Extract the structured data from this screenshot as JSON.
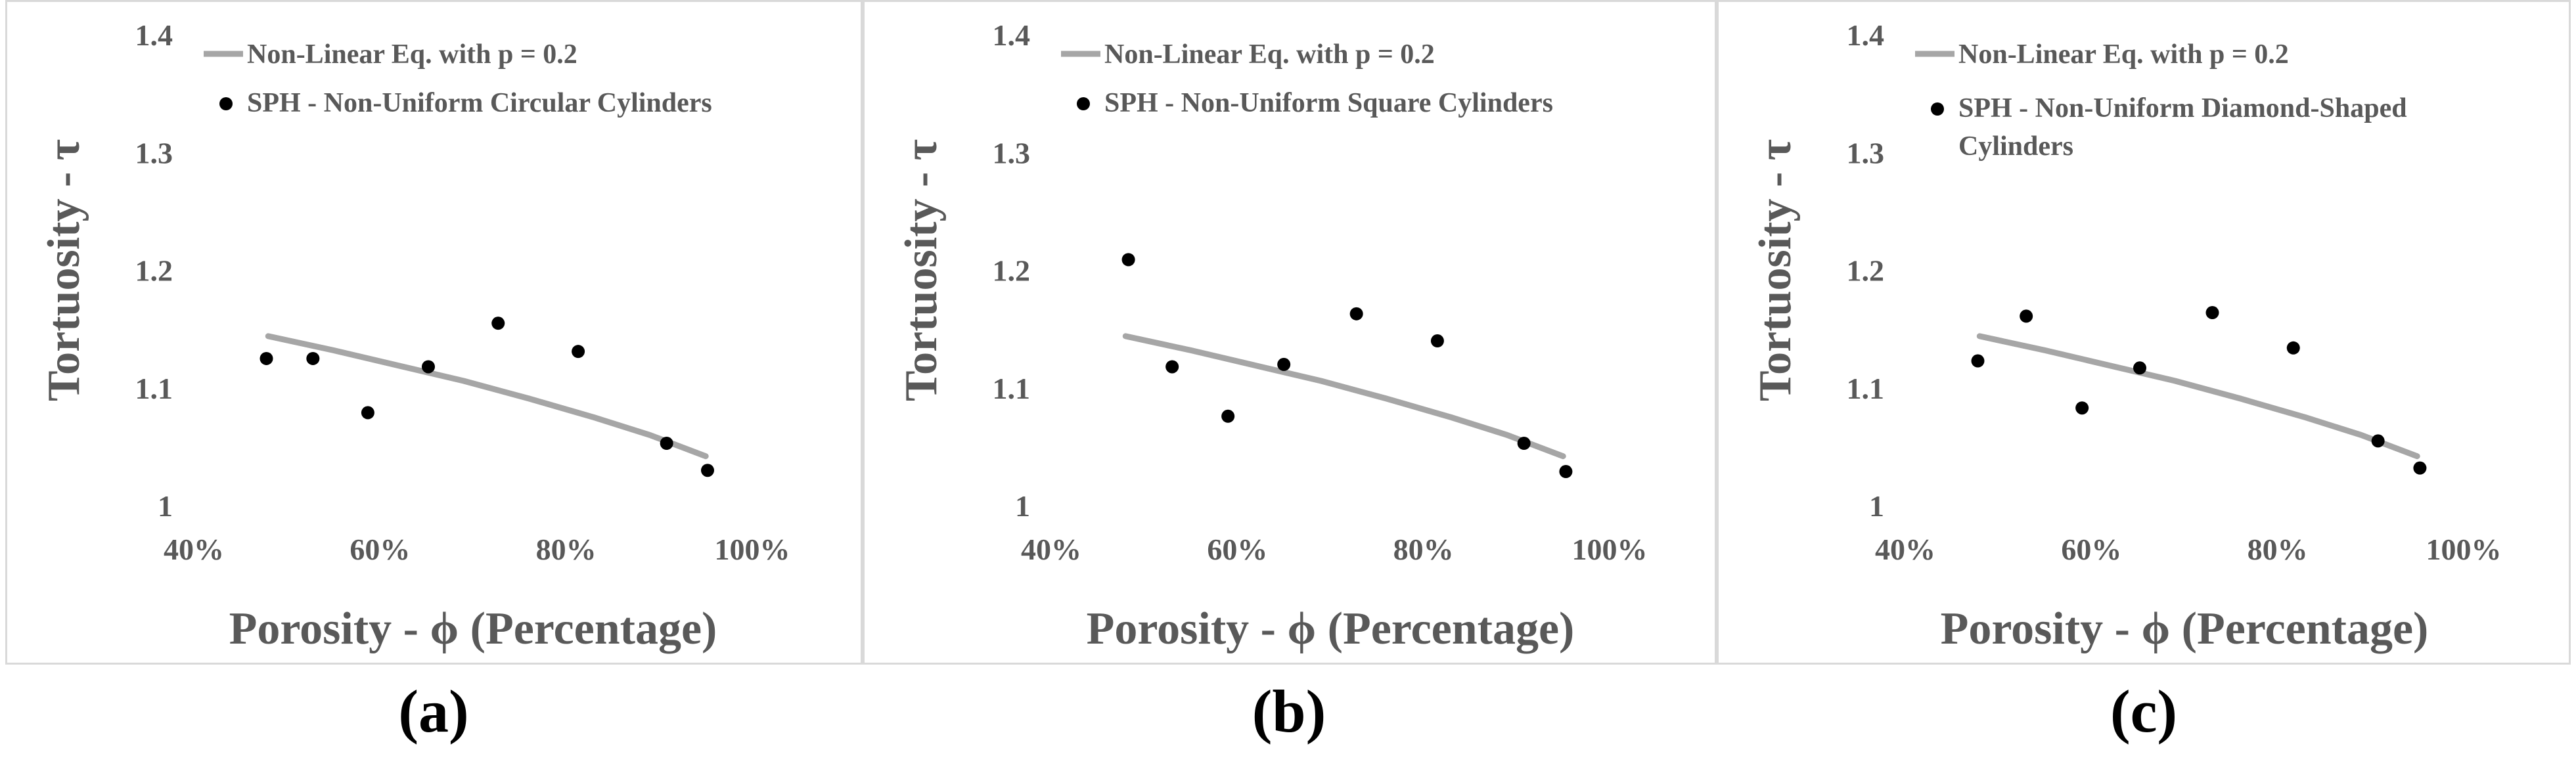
{
  "chart_data": [
    {
      "type": "scatter",
      "panel_label": "(a)",
      "xlabel": "Porosity - ϕ (Percentage)",
      "ylabel": "Tortuosity - τ",
      "xlim": [
        0.4,
        1.0
      ],
      "ylim": [
        1.0,
        1.4
      ],
      "x_ticks": [
        "40%",
        "60%",
        "80%",
        "100%"
      ],
      "y_ticks": [
        "1",
        "1.1",
        "1.2",
        "1.3",
        "1.4"
      ],
      "series": [
        {
          "name": "Non-Linear Eq. with p = 0.2",
          "kind": "line",
          "color": "#a6a6a6",
          "x": [
            0.48,
            0.55,
            0.62,
            0.69,
            0.76,
            0.83,
            0.89,
            0.95
          ],
          "y": [
            1.144,
            1.132,
            1.119,
            1.106,
            1.091,
            1.075,
            1.06,
            1.042
          ]
        },
        {
          "name": "SPH - Non-Uniform Circular Cylinders",
          "kind": "scatter",
          "color": "#000000",
          "x": [
            0.478,
            0.528,
            0.587,
            0.652,
            0.727,
            0.813,
            0.908,
            0.952
          ],
          "y": [
            1.125,
            1.125,
            1.079,
            1.118,
            1.155,
            1.131,
            1.053,
            1.03
          ]
        }
      ]
    },
    {
      "type": "scatter",
      "panel_label": "(b)",
      "xlabel": "Porosity - ϕ (Percentage)",
      "ylabel": "Tortuosity - τ",
      "xlim": [
        0.4,
        1.0
      ],
      "ylim": [
        1.0,
        1.4
      ],
      "x_ticks": [
        "40%",
        "60%",
        "80%",
        "100%"
      ],
      "y_ticks": [
        "1",
        "1.1",
        "1.2",
        "1.3",
        "1.4"
      ],
      "series": [
        {
          "name": "Non-Linear Eq. with p = 0.2",
          "kind": "line",
          "color": "#a6a6a6",
          "x": [
            0.48,
            0.55,
            0.62,
            0.69,
            0.76,
            0.83,
            0.89,
            0.95
          ],
          "y": [
            1.144,
            1.132,
            1.119,
            1.106,
            1.091,
            1.075,
            1.06,
            1.042
          ]
        },
        {
          "name": "SPH - Non-Uniform Square Cylinders",
          "kind": "scatter",
          "color": "#000000",
          "x": [
            0.483,
            0.53,
            0.59,
            0.65,
            0.728,
            0.815,
            0.908,
            0.953
          ],
          "y": [
            1.209,
            1.118,
            1.076,
            1.12,
            1.163,
            1.14,
            1.053,
            1.029
          ]
        }
      ]
    },
    {
      "type": "scatter",
      "panel_label": "(c)",
      "xlabel": "Porosity - ϕ (Percentage)",
      "ylabel": "Tortuosity - τ",
      "xlim": [
        0.4,
        1.0
      ],
      "ylim": [
        1.0,
        1.4
      ],
      "x_ticks": [
        "40%",
        "60%",
        "80%",
        "100%"
      ],
      "y_ticks": [
        "1",
        "1.1",
        "1.2",
        "1.3",
        "1.4"
      ],
      "series": [
        {
          "name": "Non-Linear Eq. with p = 0.2",
          "kind": "line",
          "color": "#a6a6a6",
          "x": [
            0.48,
            0.55,
            0.62,
            0.69,
            0.76,
            0.83,
            0.89,
            0.95
          ],
          "y": [
            1.144,
            1.132,
            1.119,
            1.106,
            1.091,
            1.075,
            1.06,
            1.042
          ]
        },
        {
          "name": "SPH - Non-Uniform Diamond-Shaped",
          "name_line2": "Cylinders",
          "kind": "scatter",
          "color": "#000000",
          "x": [
            0.478,
            0.53,
            0.59,
            0.652,
            0.73,
            0.817,
            0.908,
            0.953
          ],
          "y": [
            1.123,
            1.161,
            1.083,
            1.117,
            1.164,
            1.134,
            1.055,
            1.032
          ]
        }
      ]
    }
  ]
}
